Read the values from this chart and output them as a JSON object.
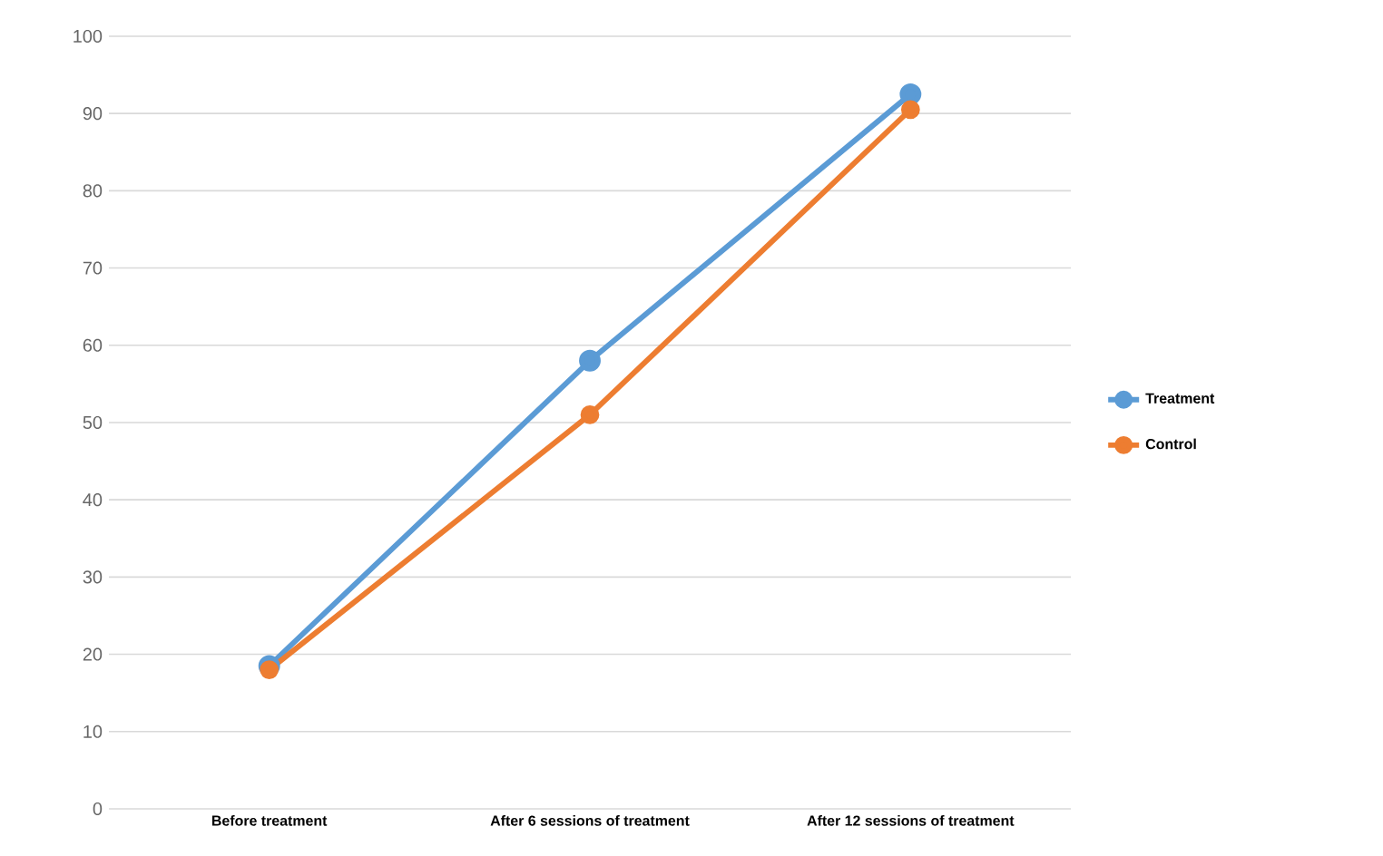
{
  "chart_data": {
    "type": "line",
    "categories": [
      "Before treatment",
      "After 6 sessions of treatment",
      "After 12 sessions of treatment"
    ],
    "series": [
      {
        "name": "Treatment",
        "color": "#5b9bd5",
        "values": [
          18.5,
          58,
          92.5
        ]
      },
      {
        "name": "Control",
        "color": "#ed7d31",
        "values": [
          18,
          51,
          90.5
        ]
      }
    ],
    "ylim": [
      0,
      100
    ],
    "yticks": [
      0,
      10,
      20,
      30,
      40,
      50,
      60,
      70,
      80,
      90,
      100
    ],
    "grid": "y",
    "legend": "right",
    "marker": "circle"
  }
}
